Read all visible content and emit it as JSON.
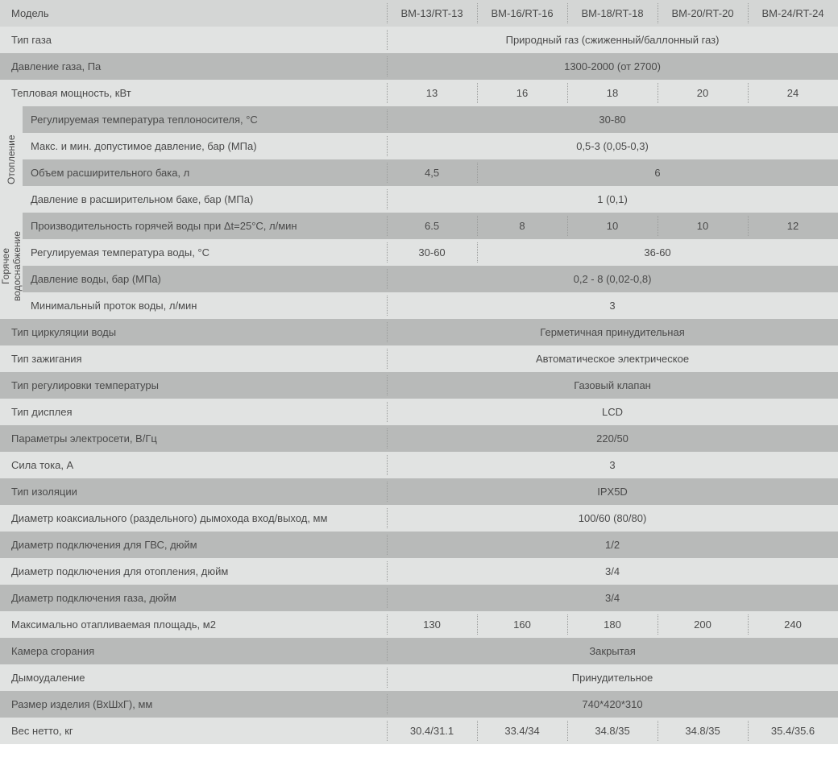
{
  "columns": [
    "BM-13/RT-13",
    "BM-16/RT-16",
    "BM-18/RT-18",
    "BM-20/RT-20",
    "BM-24/RT-24"
  ],
  "header_label": "Модель",
  "groups": {
    "heating": "Отопление",
    "dhw": "Горячее\nводоснабжение"
  },
  "rows": {
    "gas_type": {
      "label": "Тип газа",
      "span": "Природный газ (сжиженный/баллонный газ)"
    },
    "gas_pressure": {
      "label": "Давление газа, Па",
      "span": "1300-2000 (от 2700)"
    },
    "thermal_power": {
      "label": "Тепловая мощность, кВт",
      "vals": [
        "13",
        "16",
        "18",
        "20",
        "24"
      ]
    },
    "heat_temp": {
      "label": "Регулируемая температура теплоносителя, °C",
      "span": "30-80"
    },
    "heat_press": {
      "label": "Макс. и мин. допустимое давление, бар (МПа)",
      "span": "0,5-3  (0,05-0,3)"
    },
    "exp_vol": {
      "label": "Объем расширительного бака, л",
      "v1": "4,5",
      "rest": "6"
    },
    "exp_press": {
      "label": "Давление в расширительном баке, бар (МПа)",
      "span": "1 (0,1)"
    },
    "dhw_perf": {
      "label": "Производительность горячей воды при Δt=25°C, л/мин",
      "vals": [
        "6.5",
        "8",
        "10",
        "10",
        "12"
      ]
    },
    "dhw_temp": {
      "label": "Регулируемая температура воды, °C",
      "v1": "30-60",
      "rest": "36-60"
    },
    "dhw_press": {
      "label": "Давление воды, бар (МПа)",
      "span": "0,2 - 8 (0,02-0,8)"
    },
    "dhw_flow": {
      "label": "Минимальный проток воды, л/мин",
      "span": "3"
    },
    "circ": {
      "label": "Тип циркуляции воды",
      "span": "Герметичная принудительная"
    },
    "ignition": {
      "label": "Тип зажигания",
      "span": "Автоматическое электрическое"
    },
    "temp_reg": {
      "label": "Тип регулировки температуры",
      "span": "Газовый клапан"
    },
    "display": {
      "label": "Тип дисплея",
      "span": "LCD"
    },
    "mains": {
      "label": "Параметры электросети, В/Гц",
      "span": "220/50"
    },
    "current": {
      "label": "Сила тока, А",
      "span": "3"
    },
    "isolation": {
      "label": "Тип изоляции",
      "span": "IPX5D"
    },
    "flue": {
      "label": "Диаметр коаксиального (раздельного) дымохода вход/выход, мм",
      "span": "100/60 (80/80)"
    },
    "conn_dhw": {
      "label": "Диаметр подключения для ГВС, дюйм",
      "span": "1/2"
    },
    "conn_heat": {
      "label": "Диаметр подключения для отопления, дюйм",
      "span": "3/4"
    },
    "conn_gas": {
      "label": "Диаметр подключения газа, дюйм",
      "span": "3/4"
    },
    "area": {
      "label": "Максимально отапливаемая площадь, м2",
      "vals": [
        "130",
        "160",
        "180",
        "200",
        "240"
      ]
    },
    "chamber": {
      "label": "Камера сгорания",
      "span": "Закрытая"
    },
    "exhaust": {
      "label": "Дымоудаление",
      "span": "Принудительное"
    },
    "size": {
      "label": "Размер изделия (ВхШхГ), мм",
      "span": "740*420*310"
    },
    "weight": {
      "label": "Вес нетто, кг",
      "vals": [
        "30.4/31.1",
        "33.4/34",
        "34.8/35",
        "34.8/35",
        "35.4/35.6"
      ]
    }
  },
  "style": {
    "header_bg": "#d4d6d5",
    "dark_bg": "#b8bab9",
    "light_bg": "#e1e3e2",
    "text_color": "#4a4a4a",
    "sep_color": "#9a9c9b",
    "font_size": 13
  }
}
